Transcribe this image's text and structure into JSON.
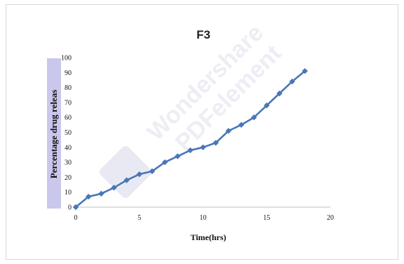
{
  "watermark": {
    "line1": "Wondershare",
    "line2": "PDFelement"
  },
  "chart_data": {
    "type": "line",
    "title": "F3",
    "xlabel": "Time(hrs)",
    "ylabel": "Percentage  drug releas",
    "xlim": [
      0,
      20
    ],
    "ylim": [
      0,
      100
    ],
    "xticks": [
      "0",
      "5",
      "10",
      "15",
      "20"
    ],
    "yticks": [
      "0",
      "10",
      "20",
      "30",
      "40",
      "50",
      "60",
      "70",
      "80",
      "90",
      "100"
    ],
    "grid": false,
    "series": [
      {
        "color": "#4a76b8",
        "marker": "diamond",
        "x": [
          0,
          1,
          2,
          3,
          4,
          5,
          6,
          7,
          8,
          9,
          10,
          11,
          12,
          13,
          14,
          15,
          16,
          17,
          18
        ],
        "y": [
          0,
          7,
          9,
          13,
          18,
          22,
          24,
          30,
          34,
          38,
          40,
          43,
          51,
          55,
          60,
          68,
          76,
          84,
          91
        ]
      }
    ]
  }
}
